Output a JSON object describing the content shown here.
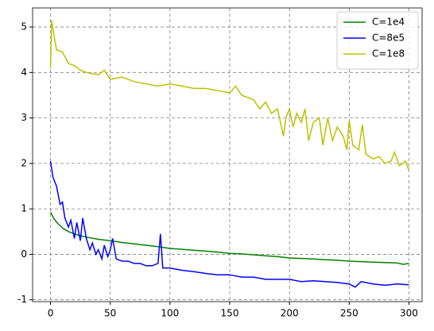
{
  "chart_data": {
    "type": "line",
    "xlim": [
      -15,
      311
    ],
    "ylim": [
      -1.04,
      5.42
    ],
    "xticks": [
      0,
      50,
      100,
      150,
      200,
      250,
      300
    ],
    "yticks": [
      -1,
      0,
      1,
      2,
      3,
      4,
      5
    ],
    "grid": true,
    "legend": "upper-right",
    "series": [
      {
        "name": "C=1e4",
        "color": "#008000",
        "x": [
          0,
          3,
          6,
          10,
          15,
          20,
          25,
          30,
          40,
          50,
          60,
          70,
          80,
          90,
          100,
          110,
          120,
          130,
          140,
          150,
          160,
          170,
          180,
          190,
          200,
          210,
          220,
          230,
          240,
          250,
          260,
          270,
          280,
          290,
          295,
          300
        ],
        "values": [
          0.93,
          0.78,
          0.68,
          0.58,
          0.5,
          0.45,
          0.41,
          0.38,
          0.33,
          0.3,
          0.26,
          0.23,
          0.2,
          0.17,
          0.13,
          0.11,
          0.09,
          0.07,
          0.05,
          0.02,
          0.01,
          -0.01,
          -0.03,
          -0.05,
          -0.08,
          -0.09,
          -0.1,
          -0.12,
          -0.13,
          -0.15,
          -0.16,
          -0.17,
          -0.18,
          -0.19,
          -0.22,
          -0.2
        ]
      },
      {
        "name": "C=8e5",
        "color": "#0000ff",
        "x": [
          0,
          2,
          5,
          8,
          10,
          12,
          15,
          17,
          20,
          22,
          25,
          27,
          30,
          33,
          35,
          38,
          40,
          43,
          45,
          48,
          50,
          52,
          55,
          60,
          65,
          70,
          75,
          80,
          85,
          90,
          92,
          94,
          100,
          110,
          120,
          130,
          140,
          150,
          160,
          170,
          180,
          190,
          200,
          210,
          220,
          230,
          240,
          250,
          255,
          260,
          270,
          280,
          290,
          300
        ],
        "values": [
          2.05,
          1.7,
          1.5,
          1.1,
          1.15,
          0.8,
          0.6,
          0.75,
          0.35,
          0.7,
          0.3,
          0.8,
          0.35,
          0.1,
          0.25,
          0.0,
          0.1,
          -0.1,
          0.2,
          -0.05,
          0.1,
          0.35,
          -0.1,
          -0.15,
          -0.15,
          -0.2,
          -0.2,
          -0.25,
          -0.25,
          -0.2,
          0.45,
          -0.3,
          -0.3,
          -0.35,
          -0.38,
          -0.42,
          -0.45,
          -0.45,
          -0.5,
          -0.5,
          -0.55,
          -0.55,
          -0.55,
          -0.6,
          -0.58,
          -0.6,
          -0.62,
          -0.65,
          -0.72,
          -0.6,
          -0.65,
          -0.68,
          -0.65,
          -0.67
        ]
      },
      {
        "name": "C=1e8",
        "color": "#bfbf00",
        "x": [
          0,
          1,
          3,
          5,
          10,
          15,
          20,
          25,
          30,
          40,
          45,
          50,
          60,
          70,
          80,
          90,
          100,
          110,
          120,
          130,
          140,
          150,
          155,
          160,
          170,
          175,
          180,
          185,
          190,
          195,
          197,
          200,
          203,
          206,
          210,
          213,
          216,
          220,
          225,
          228,
          232,
          236,
          240,
          245,
          248,
          250,
          253,
          258,
          261,
          264,
          270,
          275,
          280,
          285,
          288,
          292,
          295,
          297,
          300
        ],
        "values": [
          4.1,
          5.15,
          4.8,
          4.5,
          4.45,
          4.2,
          4.15,
          4.05,
          4.0,
          3.95,
          4.05,
          3.85,
          3.9,
          3.8,
          3.75,
          3.7,
          3.75,
          3.7,
          3.65,
          3.65,
          3.6,
          3.55,
          3.7,
          3.5,
          3.4,
          3.2,
          3.35,
          3.1,
          3.2,
          2.6,
          3.0,
          3.2,
          2.8,
          3.1,
          2.9,
          3.2,
          2.5,
          2.9,
          3.0,
          2.4,
          3.0,
          2.5,
          2.8,
          2.6,
          2.3,
          2.95,
          2.4,
          2.3,
          2.85,
          2.2,
          2.1,
          2.15,
          2.0,
          2.05,
          2.25,
          1.95,
          2.0,
          2.05,
          1.85
        ]
      }
    ]
  }
}
